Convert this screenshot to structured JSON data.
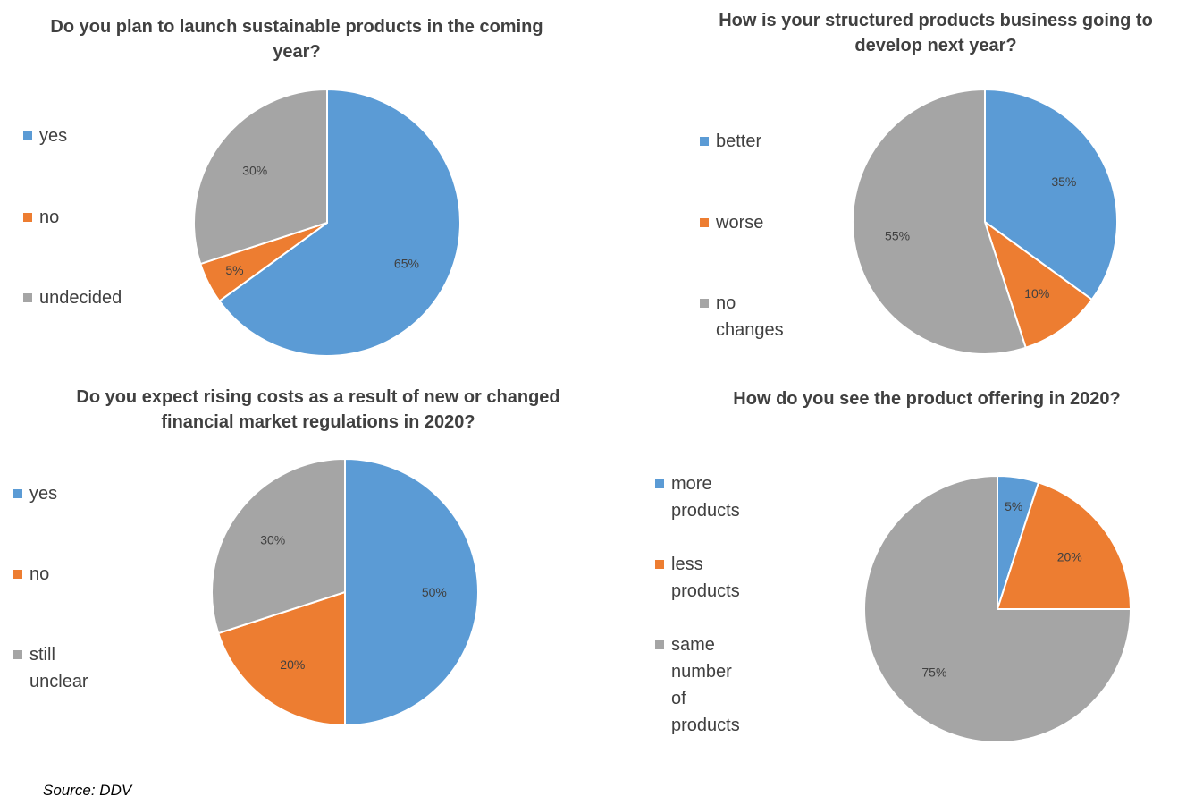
{
  "chart_data": [
    {
      "type": "pie",
      "title": "Do you plan to launch sustainable products in the coming year?",
      "categories": [
        "yes",
        "no",
        "undecided"
      ],
      "values": [
        65,
        5,
        30
      ],
      "data_labels": [
        "65%",
        "5%",
        "30%"
      ],
      "colors": [
        "#5B9BD5",
        "#ED7D31",
        "#A5A5A5"
      ],
      "legend_position": "left"
    },
    {
      "type": "pie",
      "title": "How is your structured products business going to develop next year?",
      "categories": [
        "better",
        "worse",
        "no changes"
      ],
      "values": [
        35,
        10,
        55
      ],
      "data_labels": [
        "35%",
        "10%",
        "55%"
      ],
      "colors": [
        "#5B9BD5",
        "#ED7D31",
        "#A5A5A5"
      ],
      "legend_position": "left"
    },
    {
      "type": "pie",
      "title": "Do you expect rising costs as a result of new or changed financial market regulations in 2020?",
      "categories": [
        "yes",
        "no",
        "still unclear"
      ],
      "values": [
        50,
        20,
        30
      ],
      "data_labels": [
        "50%",
        "20%",
        "30%"
      ],
      "colors": [
        "#5B9BD5",
        "#ED7D31",
        "#A5A5A5"
      ],
      "legend_position": "left"
    },
    {
      "type": "pie",
      "title": "How do you see the product offering in 2020?",
      "categories": [
        "more\nproducts",
        "less products",
        "same number\nof products"
      ],
      "values": [
        5,
        20,
        75
      ],
      "data_labels": [
        "5%",
        "20%",
        "75%"
      ],
      "colors": [
        "#5B9BD5",
        "#ED7D31",
        "#A5A5A5"
      ],
      "legend_position": "left"
    }
  ],
  "source": "Source: DDV"
}
